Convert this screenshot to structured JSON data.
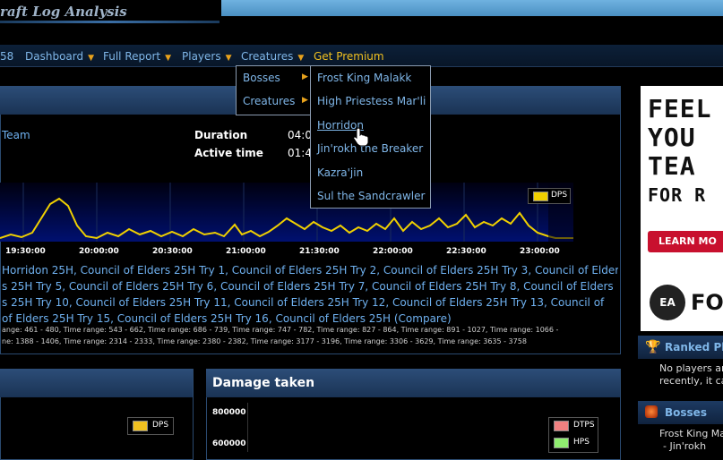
{
  "header": {
    "app_title": "raft Log Analysis"
  },
  "nav": {
    "prefix": "58",
    "items": [
      {
        "label": "Dashboard"
      },
      {
        "label": "Full Report"
      },
      {
        "label": "Players"
      },
      {
        "label": "Creatures"
      }
    ],
    "premium": "Get Premium",
    "caret": "▼"
  },
  "creatures_menu": {
    "items": [
      {
        "label": "Bosses"
      },
      {
        "label": "Creatures"
      }
    ],
    "arrow": "▶",
    "submenu": [
      {
        "label": "Frost King Malakk"
      },
      {
        "label": "High Priestess Mar'li"
      },
      {
        "label": "Horridon"
      },
      {
        "label": "Jin'rokh the Breaker"
      },
      {
        "label": "Kazra'jin"
      },
      {
        "label": "Sul the Sandcrawler"
      }
    ]
  },
  "summary": {
    "team_link": "Team",
    "duration_label": "Duration",
    "duration_value": "04:0",
    "active_label": "Active time",
    "active_value": "01:4"
  },
  "chart_data": {
    "type": "line",
    "legend": [
      {
        "name": "DPS",
        "color": "#f0d000"
      }
    ],
    "x_ticks": [
      "19:30:00",
      "20:00:00",
      "20:30:00",
      "21:00:00",
      "21:30:00",
      "22:00:00",
      "22:30:00",
      "23:00:00"
    ],
    "grid": true
  },
  "fights": {
    "line1": "Horridon 25H, Council of Elders 25H Try 1, Council of Elders 25H Try 2, Council of Elders 25H Try 3, Council of Elders",
    "line2": "s 25H Try 5, Council of Elders 25H Try 6, Council of Elders 25H Try 7, Council of Elders 25H Try 8, Council of Elders",
    "line3": "s 25H Try 10, Council of Elders 25H Try 11, Council of Elders 25H Try 12, Council of Elders 25H Try 13, Council of",
    "line4": "of Elders 25H Try 15, Council of Elders 25H Try 16, Council of Elders 25H (Compare)",
    "range1": "ange: 461 - 480, Time range: 543 - 662, Time range: 686 - 739, Time range: 747 - 782, Time range: 827 - 864, Time range: 891 - 1027, Time range: 1066 -",
    "range2": "ne: 1388 - 1406, Time range: 2314 - 2333, Time range: 2380 - 2382, Time range: 3177 - 3196, Time range: 3306 - 3629, Time range: 3635 - 3758"
  },
  "lower_left": {
    "legend": "DPS",
    "color": "#f0c020"
  },
  "damage_taken": {
    "title": "Damage taken",
    "y_ticks": [
      "800000",
      "600000"
    ],
    "legend": [
      {
        "name": "DTPS",
        "color": "#f08080"
      },
      {
        "name": "HPS",
        "color": "#90ee70"
      }
    ]
  },
  "sidebar": {
    "ad_lines": [
      "FEEL",
      "YOU",
      "TEA",
      "FOR R"
    ],
    "ad_button": "LEARN MO",
    "ad_brand": "FO",
    "ranked_title": "Ranked Pla",
    "ranked_text1": "No players are",
    "ranked_text2": "recently, it ca",
    "bosses_title": "Bosses",
    "boss1": "Frost King Mal",
    "boss2": "- Jin'rokh"
  }
}
